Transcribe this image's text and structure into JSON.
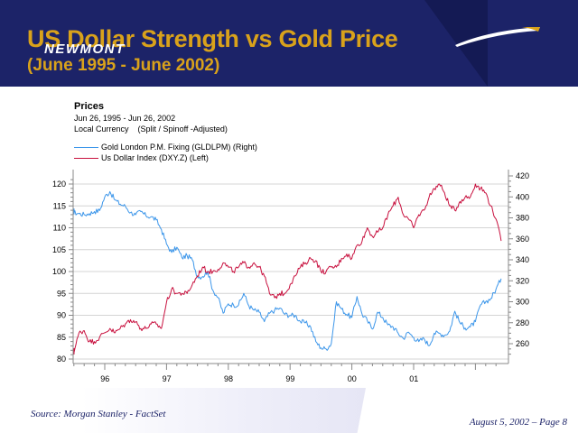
{
  "header": {
    "title": "US Dollar Strength vs Gold Price",
    "subtitle": "(June 1995 - June 2002)",
    "logo_text": "NEWMONT",
    "colors": {
      "background": "#1c2368",
      "title": "#d9a21b"
    }
  },
  "chart_header": {
    "title": "Prices",
    "date_range": "Jun 26, 1995 - Jun 26, 2002",
    "currency": "Local Currency",
    "adjustment": "(Split / Spinoff -Adjusted)"
  },
  "footer": {
    "source": "Source: Morgan Stanley - FactSet",
    "page_info": "August 5, 2002 – Page 8"
  },
  "chart_data": {
    "type": "line",
    "title": "Prices",
    "xlabel": "",
    "x_tick_labels": [
      "96",
      "97",
      "98",
      "99",
      "00",
      "01"
    ],
    "x_range": [
      "1995-06",
      "2002-06"
    ],
    "grid": true,
    "legend_position": "top-left",
    "axes": {
      "left": {
        "label": "",
        "ylim": [
          80,
          121
        ],
        "ticks": [
          80,
          85,
          90,
          95,
          100,
          105,
          110,
          115,
          120
        ]
      },
      "right": {
        "label": "",
        "ylim": [
          250,
          422
        ],
        "ticks": [
          260,
          280,
          300,
          320,
          340,
          360,
          380,
          400,
          420
        ]
      }
    },
    "x_months": [
      "1995-06",
      "1995-07",
      "1995-08",
      "1995-09",
      "1995-10",
      "1995-11",
      "1995-12",
      "1996-01",
      "1996-02",
      "1996-03",
      "1996-04",
      "1996-05",
      "1996-06",
      "1996-07",
      "1996-08",
      "1996-09",
      "1996-10",
      "1996-11",
      "1996-12",
      "1997-01",
      "1997-02",
      "1997-03",
      "1997-04",
      "1997-05",
      "1997-06",
      "1997-07",
      "1997-08",
      "1997-09",
      "1997-10",
      "1997-11",
      "1997-12",
      "1998-01",
      "1998-02",
      "1998-03",
      "1998-04",
      "1998-05",
      "1998-06",
      "1998-07",
      "1998-08",
      "1998-09",
      "1998-10",
      "1998-11",
      "1998-12",
      "1999-01",
      "1999-02",
      "1999-03",
      "1999-04",
      "1999-05",
      "1999-06",
      "1999-07",
      "1999-08",
      "1999-09",
      "1999-10",
      "1999-11",
      "1999-12",
      "2000-01",
      "2000-02",
      "2000-03",
      "2000-04",
      "2000-05",
      "2000-06",
      "2000-07",
      "2000-08",
      "2000-09",
      "2000-10",
      "2000-11",
      "2000-12",
      "2001-01",
      "2001-02",
      "2001-03",
      "2001-04",
      "2001-05",
      "2001-06",
      "2001-07",
      "2001-08",
      "2001-09",
      "2001-10",
      "2001-11",
      "2001-12",
      "2002-01",
      "2002-02",
      "2002-03",
      "2002-04",
      "2002-05",
      "2002-06"
    ],
    "series": [
      {
        "name": "Gold London P.M. Fixing (GLDLPM) (Right)",
        "axis": "right",
        "color": "#3c96ea",
        "values": [
          387,
          385,
          384,
          383,
          384,
          386,
          387,
          400,
          405,
          397,
          393,
          391,
          385,
          383,
          386,
          382,
          381,
          378,
          369,
          355,
          347,
          352,
          342,
          344,
          340,
          324,
          324,
          329,
          311,
          304,
          289,
          298,
          297,
          297,
          308,
          296,
          292,
          290,
          281,
          289,
          292,
          294,
          288,
          287,
          287,
          281,
          280,
          276,
          262,
          256,
          255,
          260,
          300,
          293,
          288,
          285,
          305,
          288,
          282,
          274,
          290,
          285,
          278,
          276,
          270,
          265,
          271,
          266,
          262,
          265,
          258,
          270,
          270,
          268,
          272,
          291,
          280,
          275,
          276,
          281,
          297,
          300,
          303,
          312,
          322
        ]
      },
      {
        "name": "Us Dollar Index (DXY.Z) (Left)",
        "axis": "left",
        "color": "#c8103e",
        "values": [
          82,
          81.5,
          86,
          86.5,
          84,
          84,
          85,
          86,
          87,
          86,
          87,
          88,
          89,
          88.5,
          87,
          87,
          88,
          88,
          87,
          93,
          96,
          95,
          95,
          95,
          97,
          99,
          101,
          100,
          100,
          100.5,
          102,
          101,
          100,
          101,
          102,
          101,
          102,
          101,
          99,
          95,
          94,
          95,
          95,
          97,
          99,
          101,
          102,
          103,
          102.5,
          100,
          100,
          101,
          101,
          103,
          104,
          103,
          106,
          107,
          110,
          108,
          109,
          110,
          113,
          115,
          117,
          113,
          112,
          110,
          113,
          114,
          117,
          119,
          120,
          118,
          115,
          114,
          116,
          117,
          117,
          120,
          119,
          118,
          115,
          112,
          107
        ]
      }
    ]
  }
}
